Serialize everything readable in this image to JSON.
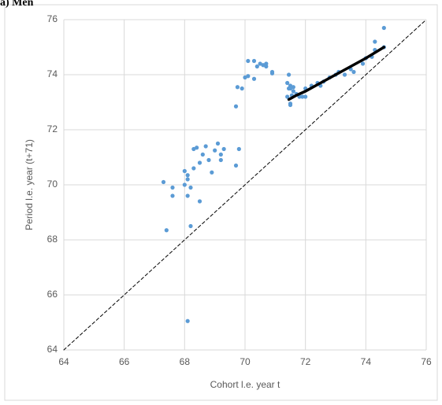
{
  "chart_data": {
    "type": "scatter",
    "title": "a) Men",
    "x_label": "Cohort l.e. year t",
    "y_label": "Period l.e. year (t+71)",
    "xlim": [
      64,
      76
    ],
    "ylim": [
      64,
      76
    ],
    "xticks": [
      64,
      66,
      68,
      70,
      72,
      74,
      76
    ],
    "yticks": [
      64,
      66,
      68,
      70,
      72,
      74,
      76
    ],
    "grid": true,
    "series": [
      {
        "type": "scatter",
        "color": "#5b9bd5",
        "x": [
          67.3,
          67.4,
          67.6,
          67.6,
          68.0,
          68.0,
          68.1,
          68.1,
          68.2,
          68.1,
          68.2,
          68.1,
          68.3,
          68.3,
          68.4,
          68.5,
          68.5,
          68.6,
          68.7,
          68.8,
          68.9,
          69.0,
          69.1,
          69.2,
          69.2,
          69.3,
          69.7,
          69.8,
          69.7,
          69.75,
          69.9,
          70.0,
          70.1,
          70.1,
          70.3,
          70.3,
          70.4,
          70.5,
          70.6,
          70.7,
          70.7,
          70.9,
          70.9,
          71.4,
          71.45,
          71.5,
          71.45,
          71.4,
          71.5,
          71.5,
          71.6,
          71.6,
          71.7,
          71.8,
          71.9,
          72.0,
          72.0,
          72.2,
          72.4,
          72.5,
          72.6,
          72.8,
          73.0,
          73.1,
          73.3,
          73.5,
          73.6,
          73.9,
          74.0,
          74.2,
          74.3,
          74.3,
          74.6,
          74.6,
          71.5,
          71.55
        ],
        "values": [
          70.1,
          68.35,
          69.6,
          69.9,
          70.5,
          70.0,
          70.2,
          69.6,
          69.9,
          70.35,
          68.5,
          65.05,
          70.6,
          71.3,
          71.35,
          70.8,
          69.4,
          71.1,
          71.4,
          70.9,
          70.45,
          71.25,
          71.5,
          71.1,
          70.9,
          71.3,
          70.7,
          71.3,
          72.85,
          73.55,
          73.5,
          73.9,
          73.95,
          74.5,
          74.5,
          73.85,
          74.3,
          74.4,
          74.35,
          74.3,
          74.4,
          74.05,
          74.1,
          73.7,
          74.0,
          73.6,
          73.5,
          73.2,
          72.9,
          73.5,
          73.55,
          73.4,
          73.3,
          73.2,
          73.2,
          73.2,
          73.5,
          73.6,
          73.7,
          73.6,
          73.75,
          73.9,
          74.0,
          74.1,
          74.0,
          74.2,
          74.1,
          74.4,
          74.6,
          74.65,
          74.9,
          75.2,
          75.0,
          75.7,
          72.95,
          73.25
        ]
      },
      {
        "type": "line",
        "color": "#000000",
        "x": [
          71.45,
          71.7,
          72.0,
          72.5,
          73.0,
          73.5,
          74.0,
          74.6
        ],
        "values": [
          73.1,
          73.25,
          73.4,
          73.7,
          74.0,
          74.3,
          74.6,
          75.0
        ]
      },
      {
        "type": "line",
        "color": "#000000",
        "dashed": true,
        "x": [
          64,
          76
        ],
        "values": [
          64,
          76
        ]
      }
    ]
  }
}
